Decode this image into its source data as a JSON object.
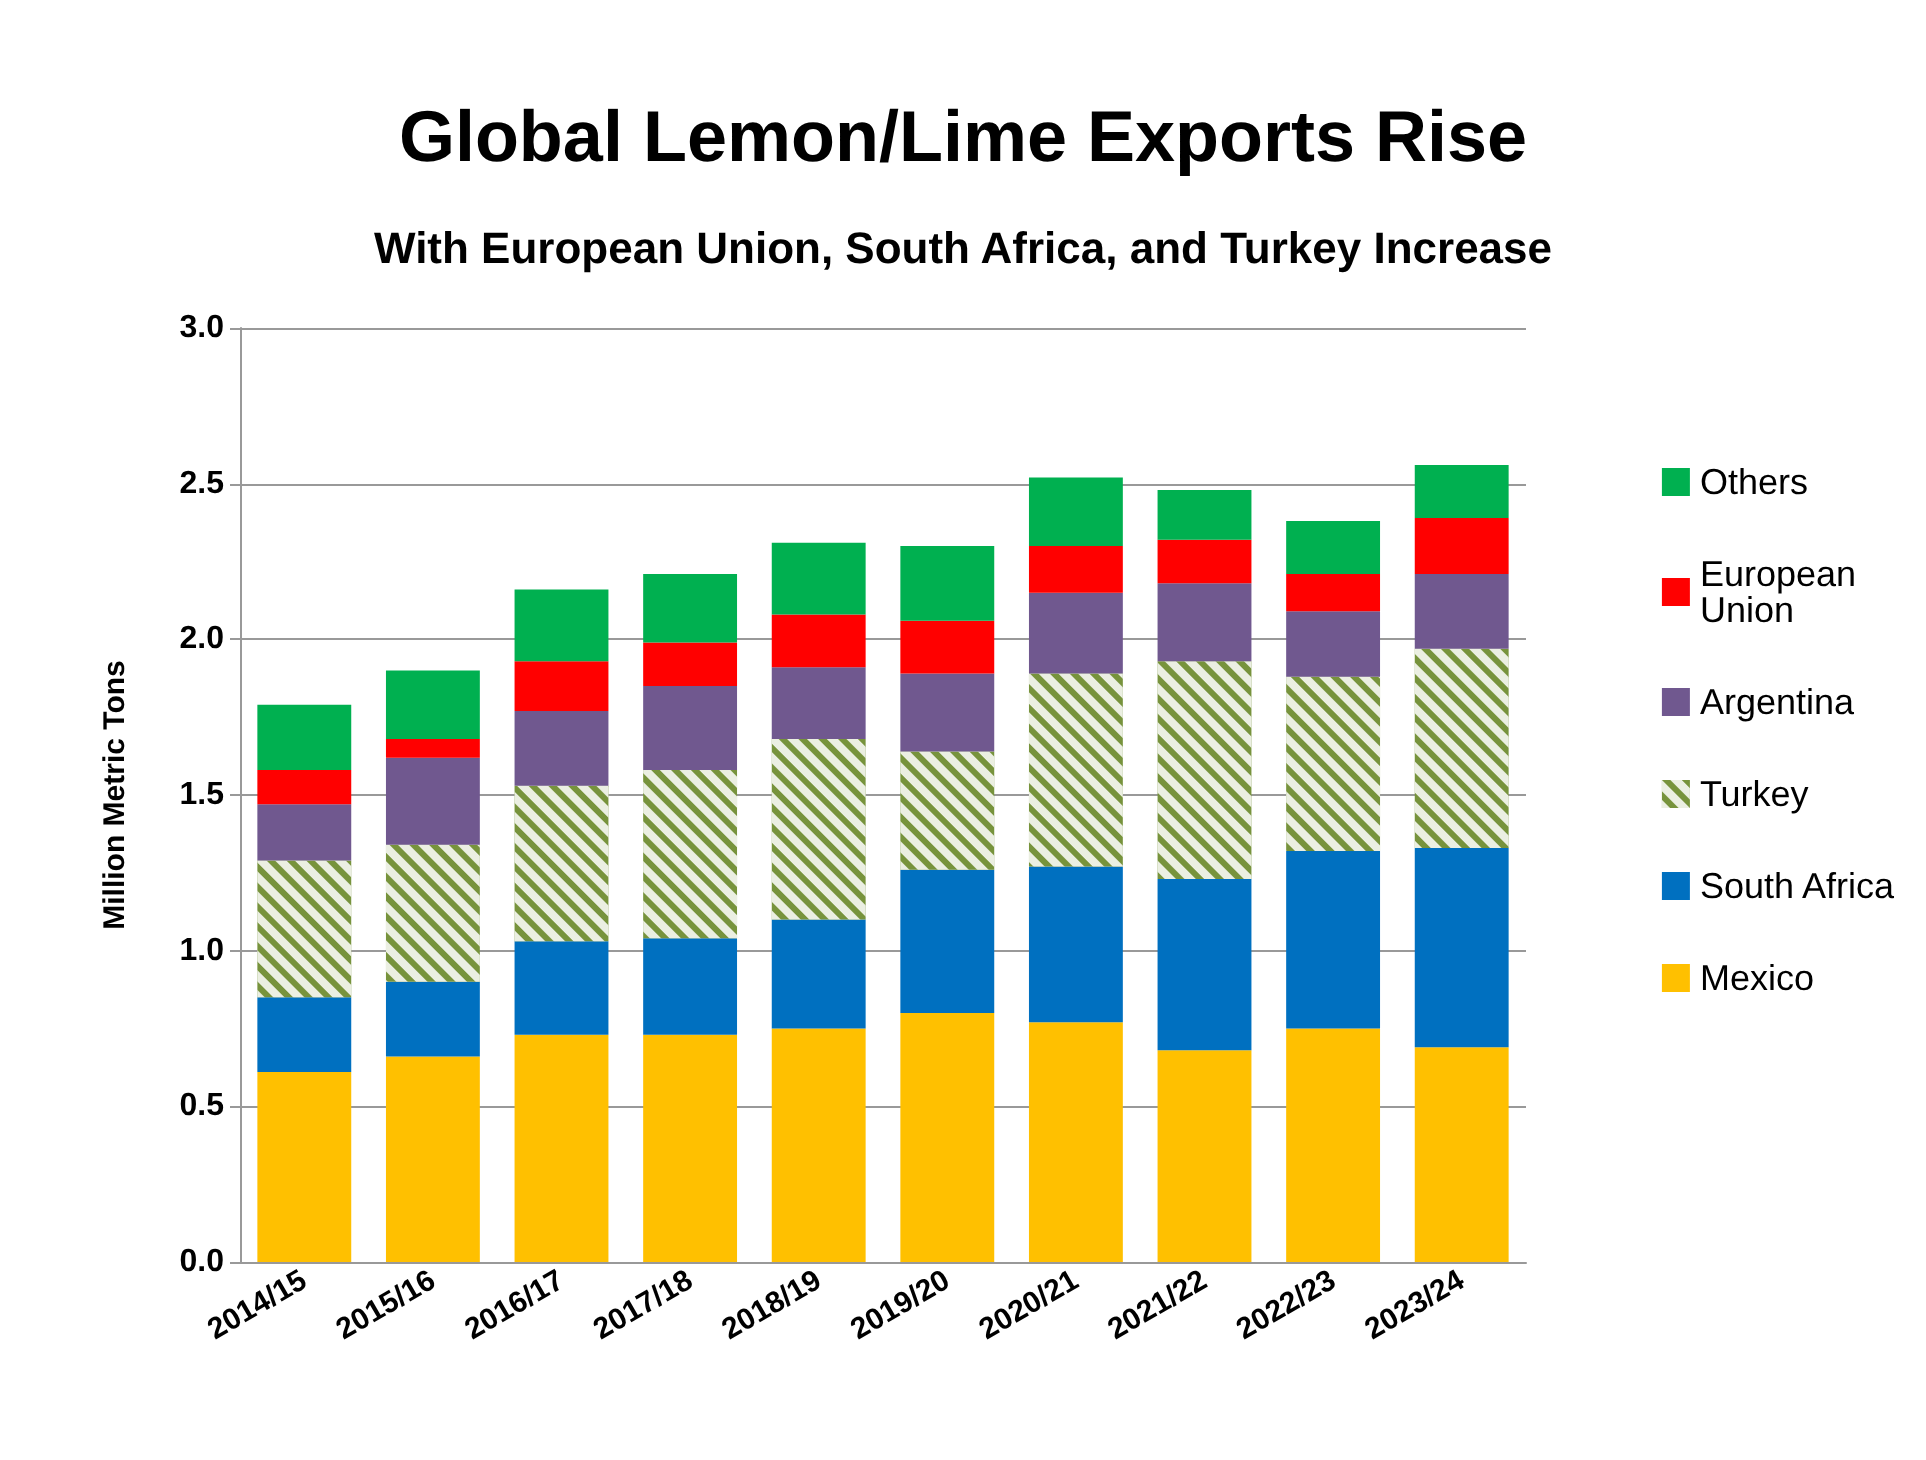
{
  "chart_data": {
    "type": "bar",
    "title": "Global Lemon/Lime Exports Rise",
    "subtitle": "With European Union, South Africa, and Turkey Increase",
    "ylabel": "Million Metric Tons",
    "categories": [
      "2014/15",
      "2015/16",
      "2016/17",
      "2017/18",
      "2018/19",
      "2019/20",
      "2020/21",
      "2021/22",
      "2022/23",
      "2023/24"
    ],
    "stacked": true,
    "series": [
      {
        "name": "Mexico",
        "color": "#ffc000",
        "values": [
          0.61,
          0.66,
          0.73,
          0.73,
          0.75,
          0.8,
          0.77,
          0.68,
          0.75,
          0.69
        ]
      },
      {
        "name": "South Africa",
        "color": "#0070c0",
        "values": [
          0.24,
          0.24,
          0.3,
          0.31,
          0.35,
          0.46,
          0.5,
          0.55,
          0.57,
          0.64
        ]
      },
      {
        "name": "Turkey",
        "color": "#77933c",
        "values": [
          0.44,
          0.44,
          0.5,
          0.54,
          0.58,
          0.38,
          0.62,
          0.7,
          0.56,
          0.64
        ]
      },
      {
        "name": "Argentina",
        "color": "#70588f",
        "values": [
          0.18,
          0.28,
          0.24,
          0.27,
          0.23,
          0.25,
          0.26,
          0.25,
          0.21,
          0.24
        ]
      },
      {
        "name": "European Union",
        "color": "#ff0000",
        "values": [
          0.11,
          0.06,
          0.16,
          0.14,
          0.17,
          0.17,
          0.15,
          0.14,
          0.12,
          0.18
        ]
      },
      {
        "name": "Others",
        "color": "#00b050",
        "values": [
          0.21,
          0.22,
          0.23,
          0.22,
          0.23,
          0.24,
          0.22,
          0.16,
          0.17,
          0.17
        ]
      }
    ],
    "ylim": [
      0,
      3
    ],
    "yticks": [
      {
        "value": 0,
        "label": "0.0"
      },
      {
        "value": 0.5,
        "label": "0.5"
      },
      {
        "value": 1,
        "label": "1.0"
      },
      {
        "value": 1.5,
        "label": "1.5"
      },
      {
        "value": 2,
        "label": "2.0"
      },
      {
        "value": 2.5,
        "label": "2.5"
      },
      {
        "value": 3,
        "label": "3.0"
      }
    ],
    "grid": "y",
    "legend": "right"
  }
}
